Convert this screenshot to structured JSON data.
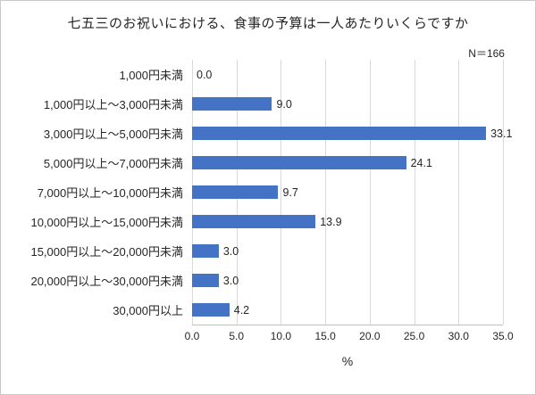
{
  "chart_data": {
    "type": "bar",
    "orientation": "horizontal",
    "title": "七五三のお祝いにおける、食事の予算は一人あたりいくらですか",
    "note": "N＝166",
    "categories": [
      "1,000円未満",
      "1,000円以上～3,000円未満",
      "3,000円以上～5,000円未満",
      "5,000円以上～7,000円未満",
      "7,000円以上～10,000円未満",
      "10,000円以上～15,000円未満",
      "15,000円以上～20,000円未満",
      "20,000円以上～30,000円未満",
      "30,000円以上"
    ],
    "values": [
      0.0,
      9.0,
      33.1,
      24.1,
      9.7,
      13.9,
      3.0,
      3.0,
      4.2
    ],
    "xlabel": "%",
    "xlim": [
      0,
      35
    ],
    "xticks": [
      0,
      5,
      10,
      15,
      20,
      25,
      30,
      35
    ],
    "bar_color": "#4472C4",
    "gridline_color": "#d9d9d9",
    "axis_color": "#bfbfbf",
    "grid": true,
    "legend": false
  }
}
